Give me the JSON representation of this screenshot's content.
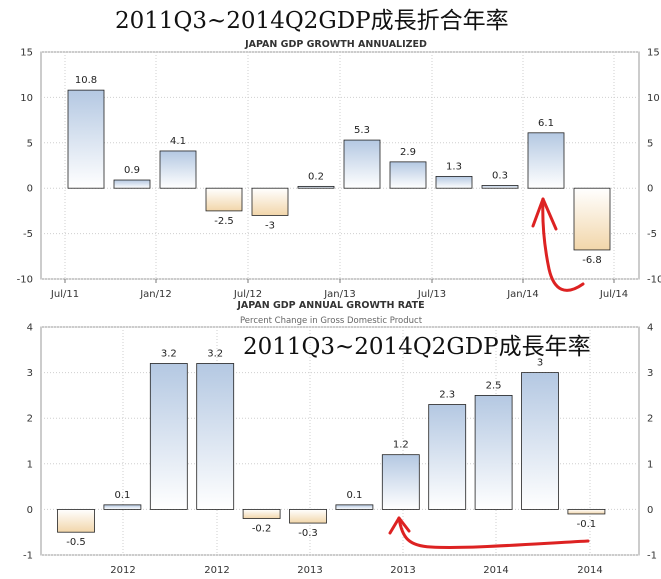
{
  "chart_data": [
    {
      "type": "bar",
      "overlay_title": "2011Q3~2014Q2GDP成長折合年率",
      "title": "JAPAN GDP GROWTH ANNUALIZED",
      "subtitle": "",
      "values": [
        10.8,
        0.9,
        4.1,
        -2.5,
        -3,
        0.2,
        5.3,
        2.9,
        1.3,
        0.3,
        6.1,
        -6.8
      ],
      "value_labels": [
        "10.8",
        "0.9",
        "4.1",
        "-2.5",
        "-3",
        "0.2",
        "5.3",
        "2.9",
        "1.3",
        "0.3",
        "6.1",
        "-6.8"
      ],
      "x_ticks": [
        "Jul/11",
        "Jan/12",
        "Jul/12",
        "Jan/13",
        "Jul/13",
        "Jan/14",
        "Jul/14"
      ],
      "y_ticks": [
        "-10",
        "-5",
        "0",
        "5",
        "10",
        "15"
      ],
      "ylim": [
        -10,
        15
      ],
      "grid": true,
      "colors": {
        "positive": "#b4c8e2",
        "negative": "#f2d6aa",
        "annotation": "#dd2222"
      }
    },
    {
      "type": "bar",
      "overlay_title": "2011Q3~2014Q2GDP成長年率",
      "title": "JAPAN GDP ANNUAL GROWTH RATE",
      "subtitle": "Percent Change in Gross Domestic Product",
      "values": [
        -0.5,
        0.1,
        3.2,
        3.2,
        -0.2,
        -0.3,
        0.1,
        1.2,
        2.3,
        2.5,
        3,
        -0.1
      ],
      "value_labels": [
        "-0.5",
        "0.1",
        "3.2",
        "3.2",
        "-0.2",
        "-0.3",
        "0.1",
        "1.2",
        "2.3",
        "2.5",
        "3",
        "-0.1"
      ],
      "x_ticks": [
        "2012",
        "2012",
        "2013",
        "2013",
        "2014",
        "2014"
      ],
      "y_ticks": [
        "-1",
        "0",
        "1",
        "2",
        "3",
        "4"
      ],
      "ylim": [
        -1,
        4
      ],
      "grid": true,
      "colors": {
        "positive": "#b4c8e2",
        "negative": "#f2d6aa",
        "annotation": "#dd2222"
      }
    }
  ]
}
